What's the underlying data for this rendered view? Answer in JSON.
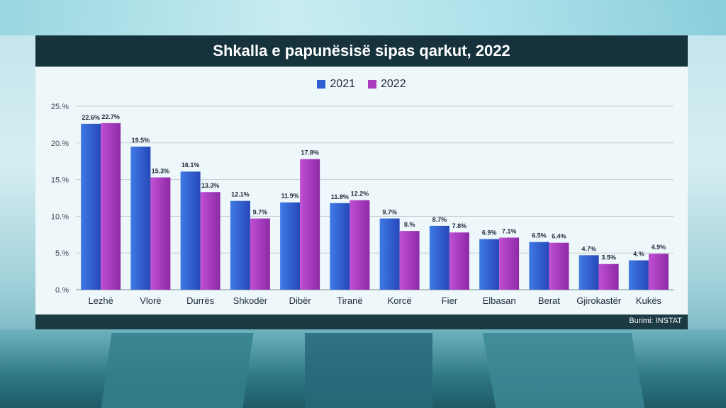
{
  "header": {
    "title": "Shkalla e papunësisë sipas qarkut, 2022"
  },
  "footer": {
    "source": "Burimi: INSTAT"
  },
  "colors": {
    "2021": "#2f5fd0",
    "2022": "#a83bbf",
    "title_bg": "#16333d"
  },
  "chart_data": {
    "type": "bar",
    "title": "Shkalla e papunësisë sipas qarkut, 2022",
    "xlabel": "",
    "ylabel": "",
    "ylim": [
      0,
      25
    ],
    "yticks": [
      "0.%",
      "5.%",
      "10.%",
      "15.%",
      "20.%",
      "25.%"
    ],
    "grid": true,
    "legend": "top-center",
    "categories": [
      "Lezhë",
      "Vlorë",
      "Durrës",
      "Shkodër",
      "Dibër",
      "Tiranë",
      "Korcë",
      "Fier",
      "Elbasan",
      "Berat",
      "Gjirokastër",
      "Kukës"
    ],
    "series": [
      {
        "name": "2021",
        "values": [
          22.6,
          19.5,
          16.1,
          12.1,
          11.9,
          11.8,
          9.7,
          8.7,
          6.9,
          6.5,
          4.7,
          4.0
        ],
        "labels": [
          "22.6%",
          "19.5%",
          "16.1%",
          "12.1%",
          "11.9%",
          "11.8%",
          "9.7%",
          "8.7%",
          "6.9%",
          "6.5%",
          "4.7%",
          "4.%"
        ]
      },
      {
        "name": "2022",
        "values": [
          22.7,
          15.3,
          13.3,
          9.7,
          17.8,
          12.2,
          8.0,
          7.8,
          7.1,
          6.4,
          3.5,
          4.9
        ],
        "labels": [
          "22.7%",
          "15.3%",
          "13.3%",
          "9.7%",
          "17.8%",
          "12.2%",
          "8.%",
          "7.8%",
          "7.1%",
          "6.4%",
          "3.5%",
          "4.9%"
        ]
      }
    ]
  }
}
